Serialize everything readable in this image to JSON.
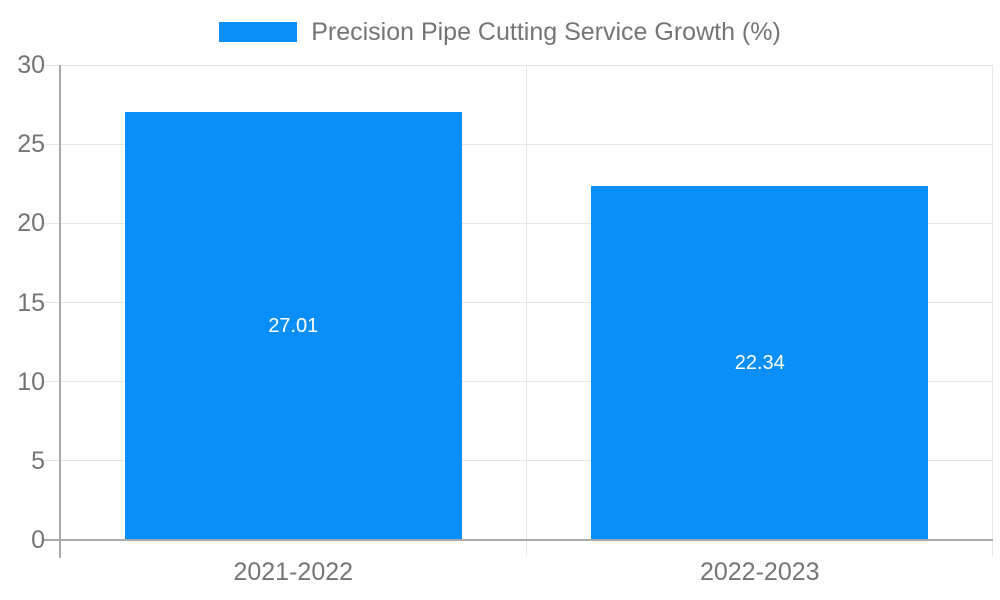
{
  "chart_data": {
    "type": "bar",
    "title": "Precision Pipe Cutting Service Growth (%)",
    "legend": [
      "Precision Pipe Cutting Service Growth (%)"
    ],
    "legend_position": "top",
    "categories": [
      "2021-2022",
      "2022-2023"
    ],
    "values": [
      27.01,
      22.34
    ],
    "value_labels": [
      "27.01",
      "22.34"
    ],
    "xlabel": "",
    "ylabel": "",
    "ylim": [
      0,
      30
    ],
    "yticks": [
      0,
      5,
      10,
      15,
      20,
      25,
      30
    ],
    "ytick_labels": [
      "0",
      "5",
      "10",
      "15",
      "20",
      "25",
      "30"
    ],
    "grid": true
  },
  "colors": {
    "bar": "#0a8ff9",
    "axis_line": "#aaaaaa",
    "gridline": "#e6e6e6",
    "tick_label": "#757575",
    "value_label": "#ffffff",
    "background": "#ffffff"
  }
}
